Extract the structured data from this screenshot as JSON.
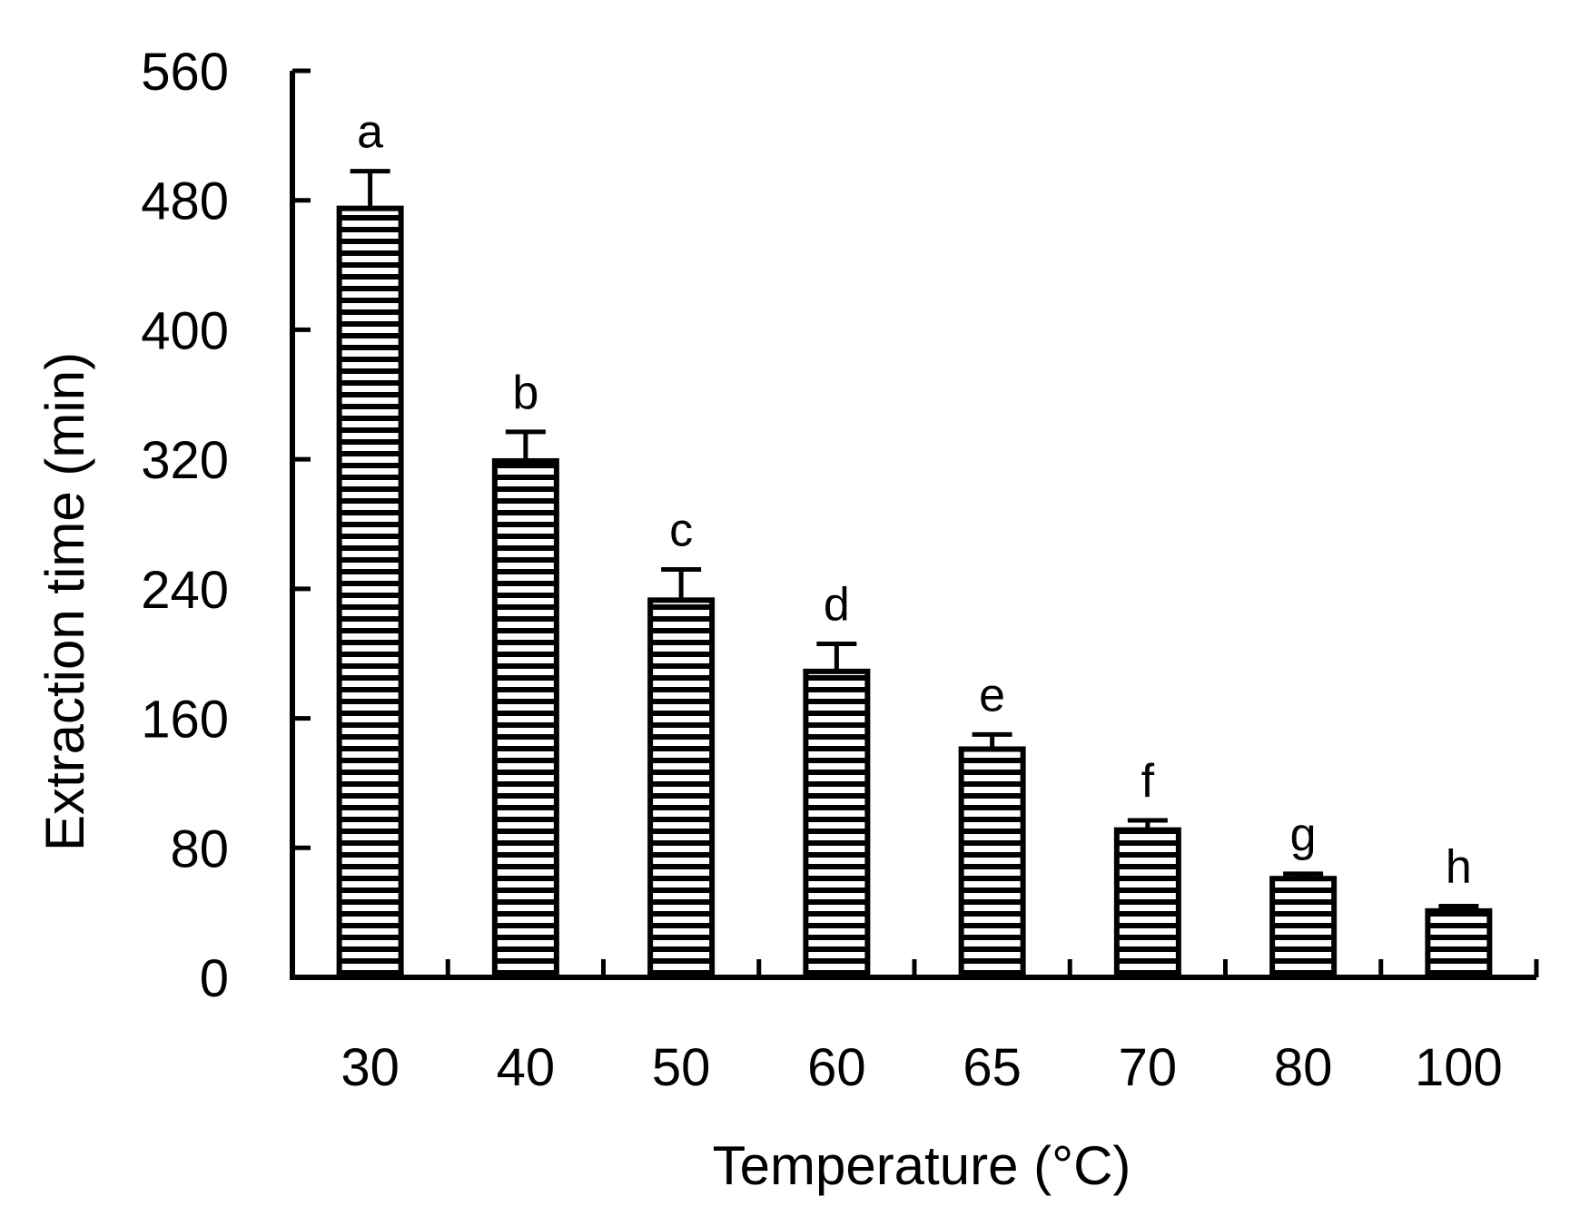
{
  "chart_data": {
    "type": "bar",
    "title": "",
    "xlabel": "Temperature (°C)",
    "ylabel": "Extraction time (min)",
    "categories": [
      "30",
      "40",
      "50",
      "60",
      "65",
      "70",
      "80",
      "100"
    ],
    "values": [
      475,
      319,
      233,
      189,
      141,
      91,
      61,
      41
    ],
    "errors": [
      23,
      18,
      19,
      17,
      9,
      6,
      3,
      3
    ],
    "significance_labels": [
      "a",
      "b",
      "c",
      "d",
      "e",
      "f",
      "g",
      "h"
    ],
    "ylim": [
      0,
      560
    ],
    "yticks": [
      "0",
      "80",
      "160",
      "240",
      "320",
      "400",
      "480",
      "560"
    ],
    "bar_fill": "horizontal-hatch",
    "colors": {
      "bar_stroke": "#000000",
      "hatch": "#000000",
      "background": "#ffffff"
    },
    "grid": false,
    "legend": "none"
  }
}
